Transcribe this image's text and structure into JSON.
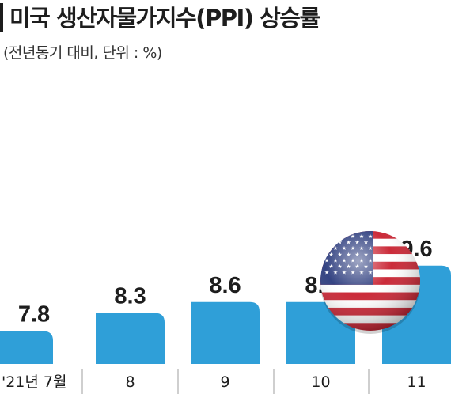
{
  "header": {
    "title": "미국 생산자물가지수(PPI) 상승률",
    "subtitle": "(전년동기 대비, 단위 : %)"
  },
  "chart_data": {
    "type": "bar",
    "categories": [
      "'21년 7월",
      "8",
      "9",
      "10",
      "11"
    ],
    "values": [
      7.8,
      8.3,
      8.6,
      8.6,
      9.6
    ],
    "value_labels": [
      "7.8",
      "8.3",
      "8.6",
      "8.6",
      "9.6"
    ],
    "title": "미국 생산자물가지수(PPI) 상승률",
    "subtitle": "(전년동기 대비, 단위 : %)",
    "xlabel": "",
    "ylabel": "",
    "grid": false,
    "legend": "none",
    "colors": {
      "bar": "#2f9fd8",
      "text": "#1d1d1d",
      "divider": "#bfbfbf"
    },
    "icon": "us-flag-ball-icon"
  }
}
